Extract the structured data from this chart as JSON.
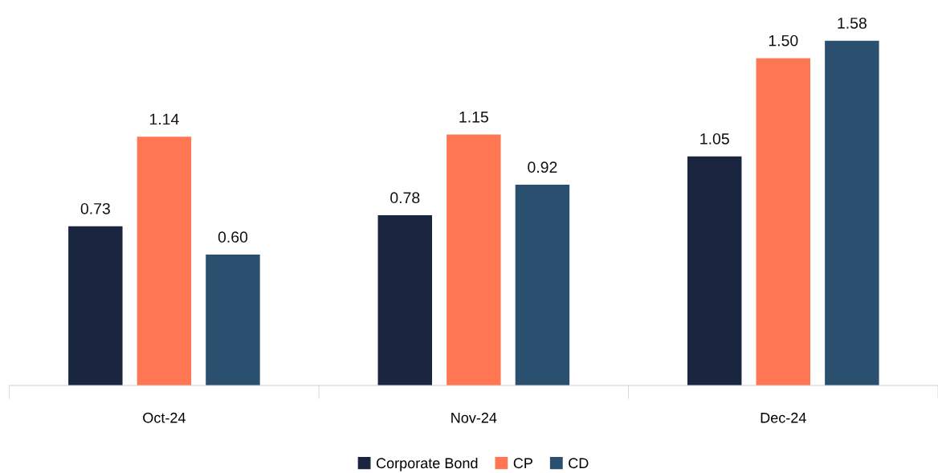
{
  "chart_data": {
    "type": "bar",
    "categories": [
      "Oct-24",
      "Nov-24",
      "Dec-24"
    ],
    "series": [
      {
        "name": "Corporate Bond",
        "color": "#1a2540",
        "values": [
          0.73,
          0.78,
          1.05
        ],
        "value_labels": [
          "0.73",
          "0.78",
          "1.05"
        ]
      },
      {
        "name": "CP",
        "color": "#ff7752",
        "values": [
          1.14,
          1.15,
          1.5
        ],
        "value_labels": [
          "1.14",
          "1.15",
          "1.50"
        ]
      },
      {
        "name": "CD",
        "color": "#2b4f6e",
        "values": [
          0.6,
          0.92,
          1.58
        ],
        "value_labels": [
          "0.60",
          "0.92",
          "1.58"
        ]
      }
    ],
    "legend": "bottom",
    "grid": false,
    "tick_labels": "x"
  }
}
